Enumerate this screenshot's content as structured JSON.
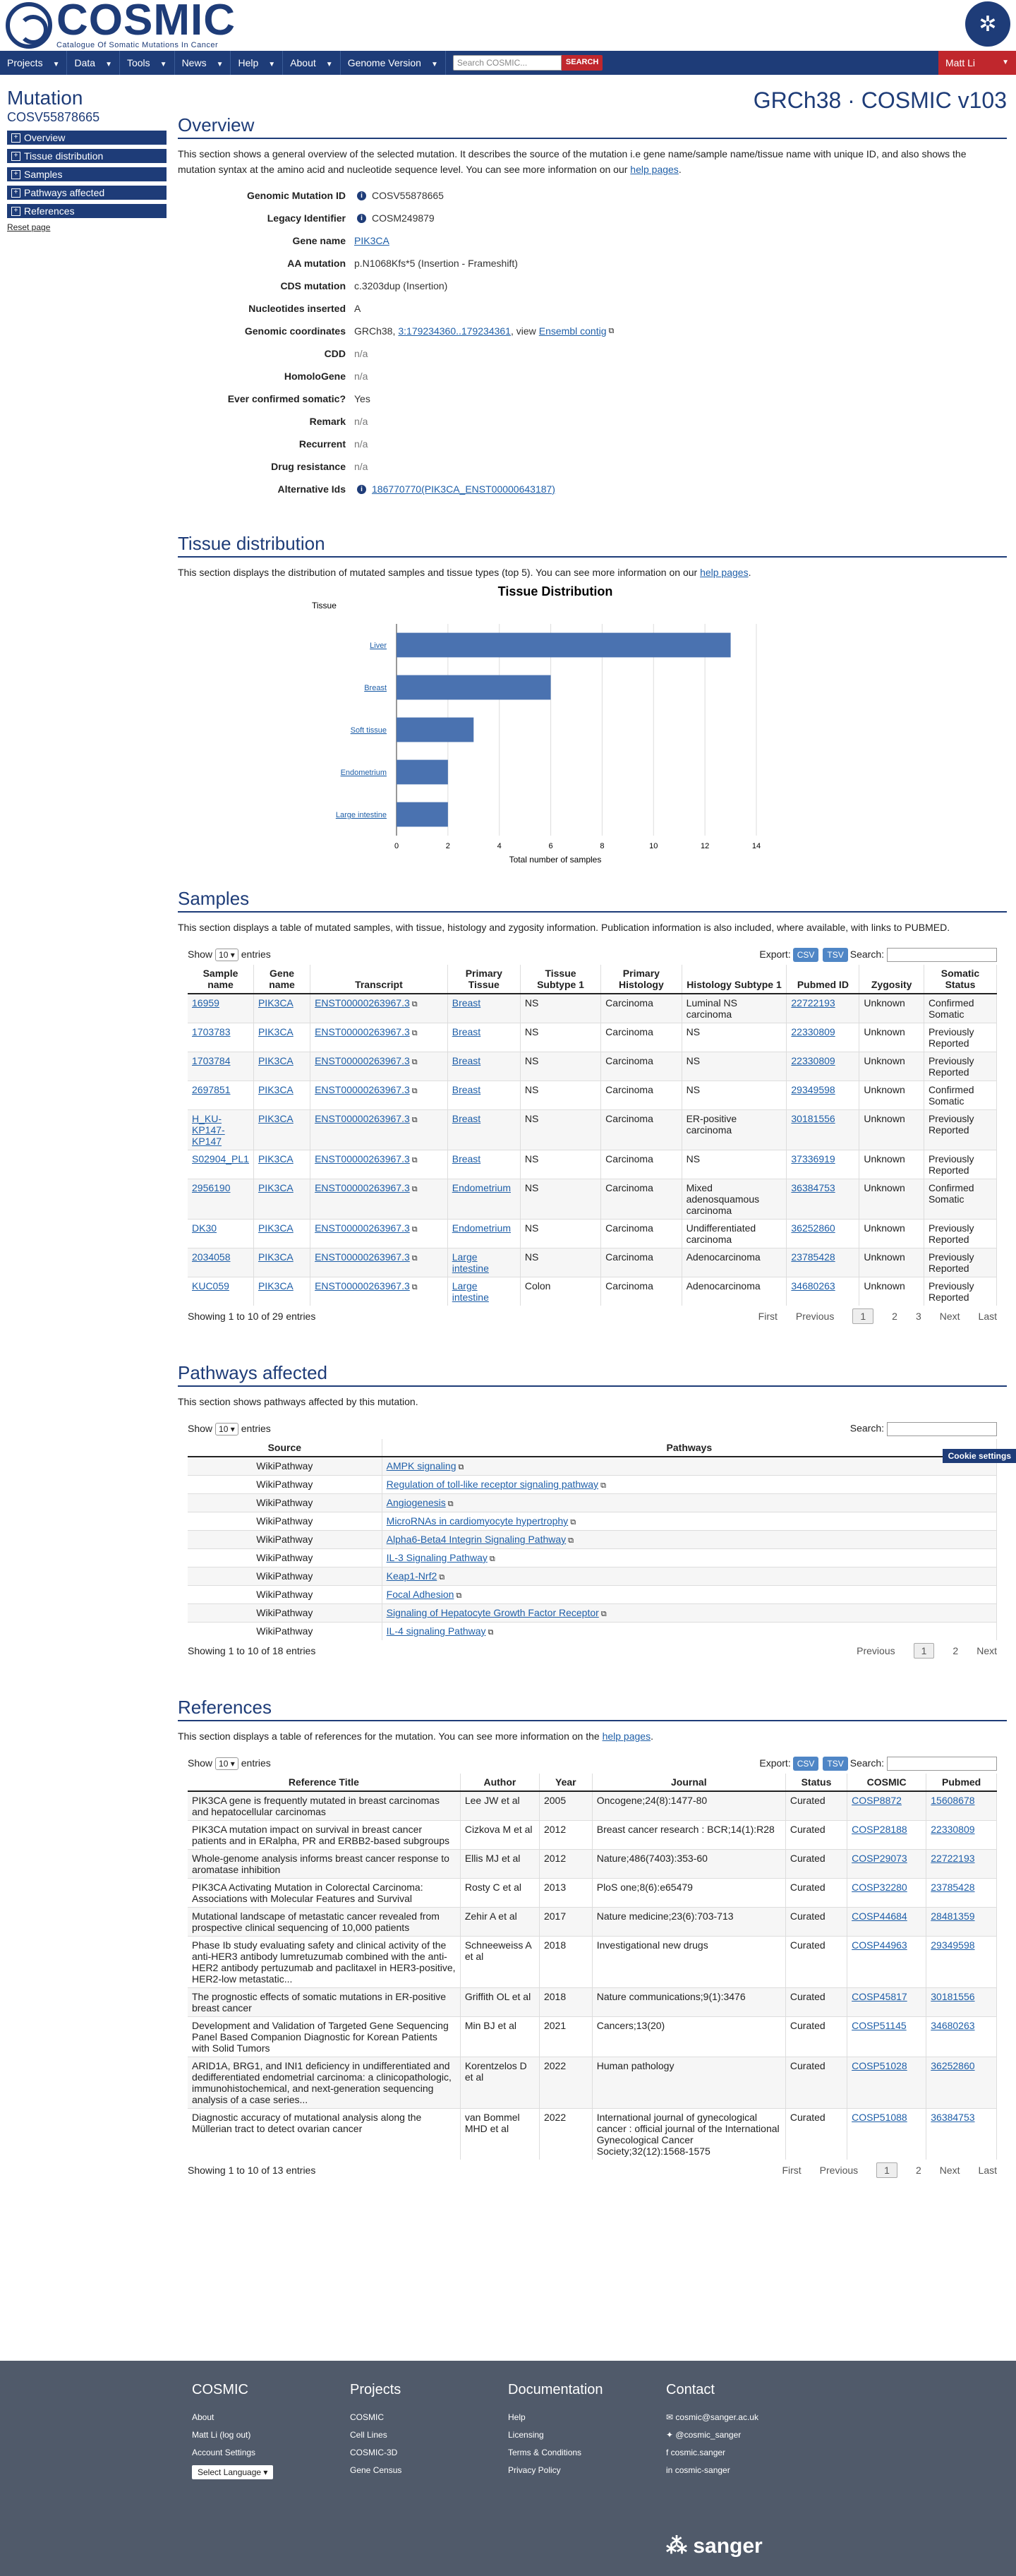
{
  "brand": {
    "name": "COSMIC",
    "tagline": "Catalogue Of Somatic Mutations In Cancer"
  },
  "nav": {
    "items": [
      "Projects",
      "Data",
      "Tools",
      "News",
      "Help",
      "About",
      "Genome Version"
    ],
    "search_placeholder": "Search COSMIC...",
    "search_button": "SEARCH",
    "user": "Matt Li"
  },
  "sidebar": {
    "kind": "Mutation",
    "id": "COSV55878665",
    "items": [
      "Overview",
      "Tissue distribution",
      "Samples",
      "Pathways affected",
      "References"
    ],
    "reset": "Reset page"
  },
  "build": "GRCh38 · COSMIC v103",
  "overview": {
    "title": "Overview",
    "desc_before": "This section shows a general overview of the selected mutation. It describes the source of the mutation i.e gene name/sample name/tissue name with unique ID, and also shows the mutation syntax at the amino acid and nucleotide sequence level. You can see more information on our ",
    "desc_link": "help pages",
    "fields": {
      "gmid_label": "Genomic Mutation ID",
      "gmid": "COSV55878665",
      "legacy_label": "Legacy Identifier",
      "legacy": "COSM249879",
      "gene_label": "Gene name",
      "gene": "PIK3CA",
      "aa_label": "AA mutation",
      "aa": "p.N1068Kfs*5 (Insertion - Frameshift)",
      "cds_label": "CDS mutation",
      "cds": "c.3203dup (Insertion)",
      "nuc_label": "Nucleotides inserted",
      "nuc": "A",
      "coord_label": "Genomic coordinates",
      "coord_prefix": "GRCh38, ",
      "coord_link": "3:179234360..179234361",
      "coord_mid": ", view ",
      "ensembl": "Ensembl contig",
      "cdd_label": "CDD",
      "cdd": "n/a",
      "homolo_label": "HomoloGene",
      "homolo": "n/a",
      "confirmed_label": "Ever confirmed somatic?",
      "confirmed": "Yes",
      "remark_label": "Remark",
      "remark": "n/a",
      "recurrent_label": "Recurrent",
      "recurrent": "n/a",
      "drug_label": "Drug resistance",
      "drug": "n/a",
      "alt_label": "Alternative Ids",
      "alt": "186770770(PIK3CA_ENST00000643187)"
    }
  },
  "tissue": {
    "title": "Tissue distribution",
    "desc_before": "This section displays the distribution of mutated samples and tissue types (top 5). You can see more information on our ",
    "desc_link": "help pages"
  },
  "chart_data": {
    "type": "bar",
    "orientation": "horizontal",
    "title": "Tissue Distribution",
    "ylabel": "Tissue",
    "xlabel": "Total number of samples",
    "categories": [
      "Liver",
      "Breast",
      "Soft tissue",
      "Endometrium",
      "Large intestine"
    ],
    "series": [
      {
        "name": "Samples with mutation",
        "values": [
          13,
          6,
          3,
          2,
          2
        ]
      }
    ],
    "xlim": [
      0,
      14
    ],
    "xticks": [
      0,
      2,
      4,
      6,
      8,
      10,
      12,
      14
    ],
    "color": "#4a72b0",
    "legend": "bottom-left"
  },
  "samples": {
    "title": "Samples",
    "desc": "This section displays a table of mutated samples, with tissue, histology and zygosity information. Publication information is also included, where available, with links to PUBMED.",
    "show": "Show",
    "entries": "entries",
    "page_size": "10",
    "export": "Export:",
    "csv": "CSV",
    "tsv": "TSV",
    "search": "Search:",
    "headers": [
      "Sample name",
      "Gene name",
      "Transcript",
      "Primary Tissue",
      "Tissue Subtype 1",
      "Primary Histology",
      "Histology Subtype 1",
      "Pubmed ID",
      "Zygosity",
      "Somatic Status"
    ],
    "rows": [
      [
        "16959",
        "PIK3CA",
        "ENST00000263967.3",
        "Breast",
        "NS",
        "Carcinoma",
        "Luminal NS carcinoma",
        "22722193",
        "Unknown",
        "Confirmed Somatic"
      ],
      [
        "1703783",
        "PIK3CA",
        "ENST00000263967.3",
        "Breast",
        "NS",
        "Carcinoma",
        "NS",
        "22330809",
        "Unknown",
        "Previously Reported"
      ],
      [
        "1703784",
        "PIK3CA",
        "ENST00000263967.3",
        "Breast",
        "NS",
        "Carcinoma",
        "NS",
        "22330809",
        "Unknown",
        "Previously Reported"
      ],
      [
        "2697851",
        "PIK3CA",
        "ENST00000263967.3",
        "Breast",
        "NS",
        "Carcinoma",
        "NS",
        "29349598",
        "Unknown",
        "Confirmed Somatic"
      ],
      [
        "H_KU-KP147-KP147",
        "PIK3CA",
        "ENST00000263967.3",
        "Breast",
        "NS",
        "Carcinoma",
        "ER-positive carcinoma",
        "30181556",
        "Unknown",
        "Previously Reported"
      ],
      [
        "S02904_PL1",
        "PIK3CA",
        "ENST00000263967.3",
        "Breast",
        "NS",
        "Carcinoma",
        "NS",
        "37336919",
        "Unknown",
        "Previously Reported"
      ],
      [
        "2956190",
        "PIK3CA",
        "ENST00000263967.3",
        "Endometrium",
        "NS",
        "Carcinoma",
        "Mixed adenosquamous carcinoma",
        "36384753",
        "Unknown",
        "Confirmed Somatic"
      ],
      [
        "DK30",
        "PIK3CA",
        "ENST00000263967.3",
        "Endometrium",
        "NS",
        "Carcinoma",
        "Undifferentiated carcinoma",
        "36252860",
        "Unknown",
        "Previously Reported"
      ],
      [
        "2034058",
        "PIK3CA",
        "ENST00000263967.3",
        "Large intestine",
        "NS",
        "Carcinoma",
        "Adenocarcinoma",
        "23785428",
        "Unknown",
        "Previously Reported"
      ],
      [
        "KUC059",
        "PIK3CA",
        "ENST00000263967.3",
        "Large intestine",
        "Colon",
        "Carcinoma",
        "Adenocarcinoma",
        "34680263",
        "Unknown",
        "Previously Reported"
      ]
    ],
    "info": "Showing 1 to 10 of 29 entries",
    "pager": [
      "First",
      "Previous",
      "1",
      "2",
      "3",
      "Next",
      "Last"
    ]
  },
  "pathways": {
    "title": "Pathways affected",
    "desc": "This section shows pathways affected by this mutation.",
    "show": "Show",
    "entries": "entries",
    "page_size": "10",
    "search": "Search:",
    "cookie": "Cookie settings",
    "headers": [
      "Source",
      "Pathways"
    ],
    "rows": [
      [
        "WikiPathway",
        "AMPK signaling"
      ],
      [
        "WikiPathway",
        "Regulation of toll-like receptor signaling pathway"
      ],
      [
        "WikiPathway",
        "Angiogenesis"
      ],
      [
        "WikiPathway",
        "MicroRNAs in cardiomyocyte hypertrophy"
      ],
      [
        "WikiPathway",
        "Alpha6-Beta4 Integrin Signaling Pathway"
      ],
      [
        "WikiPathway",
        "IL-3 Signaling Pathway"
      ],
      [
        "WikiPathway",
        "Keap1-Nrf2"
      ],
      [
        "WikiPathway",
        "Focal Adhesion"
      ],
      [
        "WikiPathway",
        "Signaling of Hepatocyte Growth Factor Receptor"
      ],
      [
        "WikiPathway",
        "IL-4 signaling Pathway"
      ]
    ],
    "info": "Showing 1 to 10 of 18 entries",
    "pager": [
      "Previous",
      "1",
      "2",
      "Next"
    ]
  },
  "references": {
    "title": "References",
    "desc_before": "This section displays a table of references for the mutation. You can see more information on the ",
    "desc_link": "help pages",
    "show": "Show",
    "entries": "entries",
    "page_size": "10",
    "export": "Export:",
    "csv": "CSV",
    "tsv": "TSV",
    "search": "Search:",
    "headers": [
      "Reference Title",
      "Author",
      "Year",
      "Journal",
      "Status",
      "COSMIC",
      "Pubmed"
    ],
    "rows": [
      [
        "PIK3CA gene is frequently mutated in breast carcinomas and hepatocellular carcinomas",
        "Lee JW et al",
        "2005",
        "Oncogene;24(8):1477-80",
        "Curated",
        "COSP8872",
        "15608678"
      ],
      [
        "PIK3CA mutation impact on survival in breast cancer patients and in ERalpha, PR and ERBB2-based subgroups",
        "Cizkova M et al",
        "2012",
        "Breast cancer research : BCR;14(1):R28",
        "Curated",
        "COSP28188",
        "22330809"
      ],
      [
        "Whole-genome analysis informs breast cancer response to aromatase inhibition",
        "Ellis MJ et al",
        "2012",
        "Nature;486(7403):353-60",
        "Curated",
        "COSP29073",
        "22722193"
      ],
      [
        "PIK3CA Activating Mutation in Colorectal Carcinoma: Associations with Molecular Features and Survival",
        "Rosty C et al",
        "2013",
        "PloS one;8(6):e65479",
        "Curated",
        "COSP32280",
        "23785428"
      ],
      [
        "Mutational landscape of metastatic cancer revealed from prospective clinical sequencing of 10,000 patients",
        "Zehir A et al",
        "2017",
        "Nature medicine;23(6):703-713",
        "Curated",
        "COSP44684",
        "28481359"
      ],
      [
        "Phase Ib study evaluating safety and clinical activity of the anti-HER3 antibody lumretuzumab combined with the anti-HER2 antibody pertuzumab and paclitaxel in HER3-positive, HER2-low metastatic...",
        "Schneeweiss A et al",
        "2018",
        "Investigational new drugs",
        "Curated",
        "COSP44963",
        "29349598"
      ],
      [
        "The prognostic effects of somatic mutations in ER-positive breast cancer",
        "Griffith OL et al",
        "2018",
        "Nature communications;9(1):3476",
        "Curated",
        "COSP45817",
        "30181556"
      ],
      [
        "Development and Validation of Targeted Gene Sequencing Panel Based Companion Diagnostic for Korean Patients with Solid Tumors",
        "Min BJ et al",
        "2021",
        "Cancers;13(20)",
        "Curated",
        "COSP51145",
        "34680263"
      ],
      [
        "ARID1A, BRG1, and INI1 deficiency in undifferentiated and dedifferentiated endometrial carcinoma: a clinicopathologic, immunohistochemical, and next-generation sequencing analysis of a case series...",
        "Korentzelos D et al",
        "2022",
        "Human pathology",
        "Curated",
        "COSP51028",
        "36252860"
      ],
      [
        "Diagnostic accuracy of mutational analysis along the Müllerian tract to detect ovarian cancer",
        "van Bommel MHD et al",
        "2022",
        "International journal of gynecological cancer : official journal of the International Gynecological Cancer Society;32(12):1568-1575",
        "Curated",
        "COSP51088",
        "36384753"
      ]
    ],
    "info": "Showing 1 to 10 of 13 entries",
    "pager": [
      "First",
      "Previous",
      "1",
      "2",
      "Next",
      "Last"
    ]
  },
  "footer": {
    "cosmic": {
      "title": "COSMIC",
      "links": [
        "About",
        "Matt Li (log out)",
        "Account Settings"
      ],
      "language": "Select Language"
    },
    "projects": {
      "title": "Projects",
      "links": [
        "COSMIC",
        "Cell Lines",
        "COSMIC-3D",
        "Gene Census"
      ]
    },
    "docs": {
      "title": "Documentation",
      "links": [
        "Help",
        "Licensing",
        "Terms & Conditions",
        "Privacy Policy"
      ]
    },
    "contact": {
      "title": "Contact",
      "links": [
        "cosmic@sanger.ac.uk",
        "@cosmic_sanger",
        "cosmic.sanger",
        "cosmic-sanger"
      ]
    },
    "wellcome": "sanger"
  }
}
